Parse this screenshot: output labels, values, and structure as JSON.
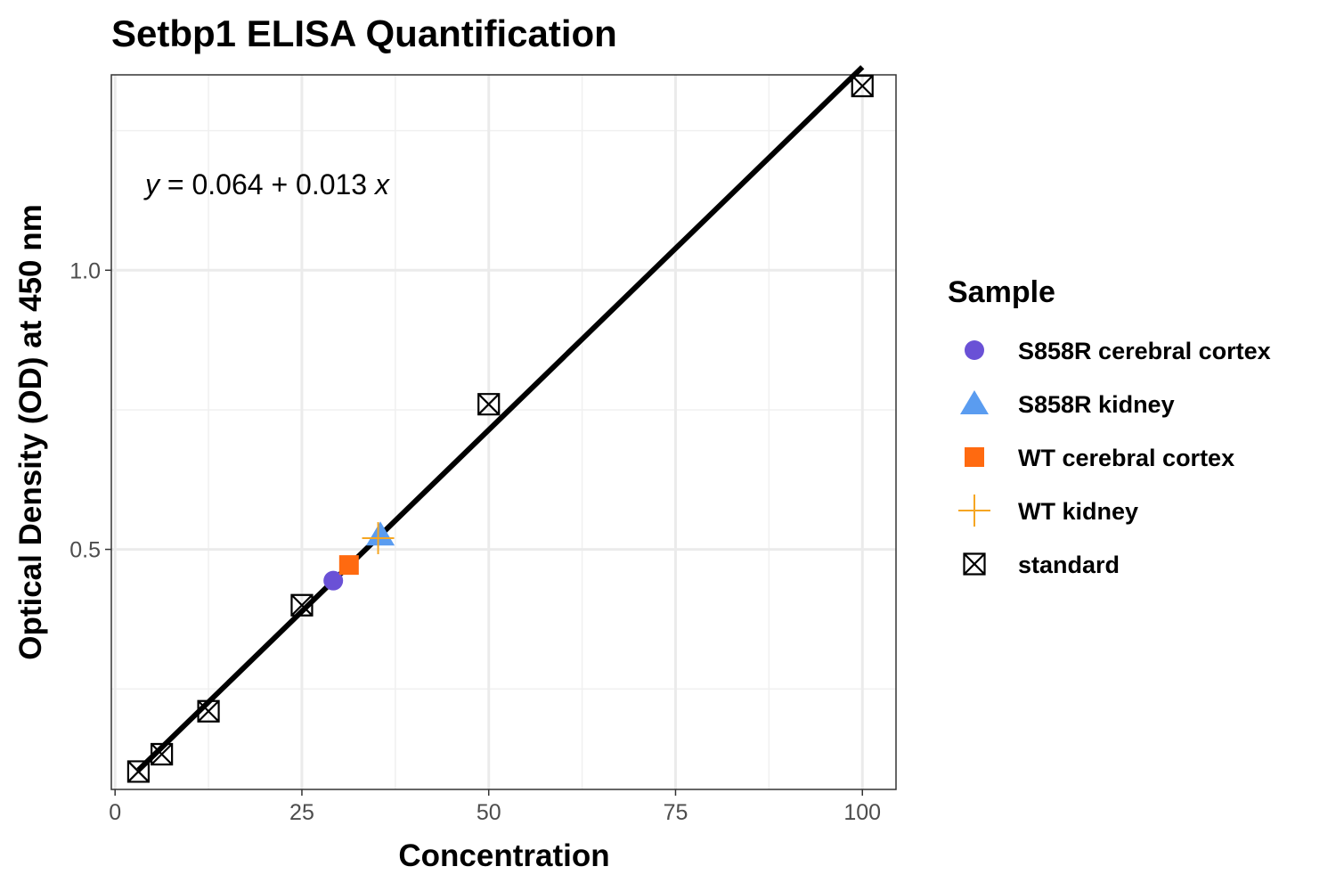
{
  "chart_data": {
    "type": "scatter",
    "title": "Setbp1 ELISA Quantification",
    "xlabel": "Concentration",
    "ylabel": "Optical Density (OD) at 450 nm",
    "xlim": [
      -0.5,
      104.5
    ],
    "ylim": [
      0.07,
      1.35
    ],
    "x_ticks": [
      0,
      25,
      50,
      75,
      100
    ],
    "y_ticks": [
      0.5,
      1.0
    ],
    "x_tick_labels": [
      "0",
      "25",
      "50",
      "75",
      "100"
    ],
    "y_tick_labels": [
      "0.5",
      "1.0"
    ],
    "grid": true,
    "equation": {
      "y_var": "y",
      "mid": " = 0.064 + 0.013 ",
      "x_var": "x"
    },
    "fit_line": {
      "intercept": 0.064,
      "slope": 0.013,
      "x_range": [
        3.125,
        100
      ]
    },
    "legend": {
      "title": "Sample",
      "position": "right"
    },
    "series": [
      {
        "name": "S858R cerebral cortex",
        "shape": "circle",
        "color": "#6a51d6",
        "points": [
          {
            "x": 29.2,
            "y": 0.444
          }
        ]
      },
      {
        "name": "S858R kidney",
        "shape": "triangle",
        "color": "#5a9cf0",
        "points": [
          {
            "x": 35.5,
            "y": 0.526
          }
        ]
      },
      {
        "name": "WT cerebral cortex",
        "shape": "square",
        "color": "#ff6a10",
        "points": [
          {
            "x": 31.3,
            "y": 0.472
          }
        ]
      },
      {
        "name": "WT kidney",
        "shape": "plus",
        "color": "#f5a623",
        "points": [
          {
            "x": 35.2,
            "y": 0.52
          }
        ]
      },
      {
        "name": "standard",
        "shape": "boxcross",
        "color": "#000000",
        "points": [
          {
            "x": 3.125,
            "y": 0.102
          },
          {
            "x": 6.25,
            "y": 0.133
          },
          {
            "x": 12.5,
            "y": 0.21
          },
          {
            "x": 25,
            "y": 0.4
          },
          {
            "x": 50,
            "y": 0.76
          },
          {
            "x": 100,
            "y": 1.33
          }
        ]
      }
    ]
  }
}
